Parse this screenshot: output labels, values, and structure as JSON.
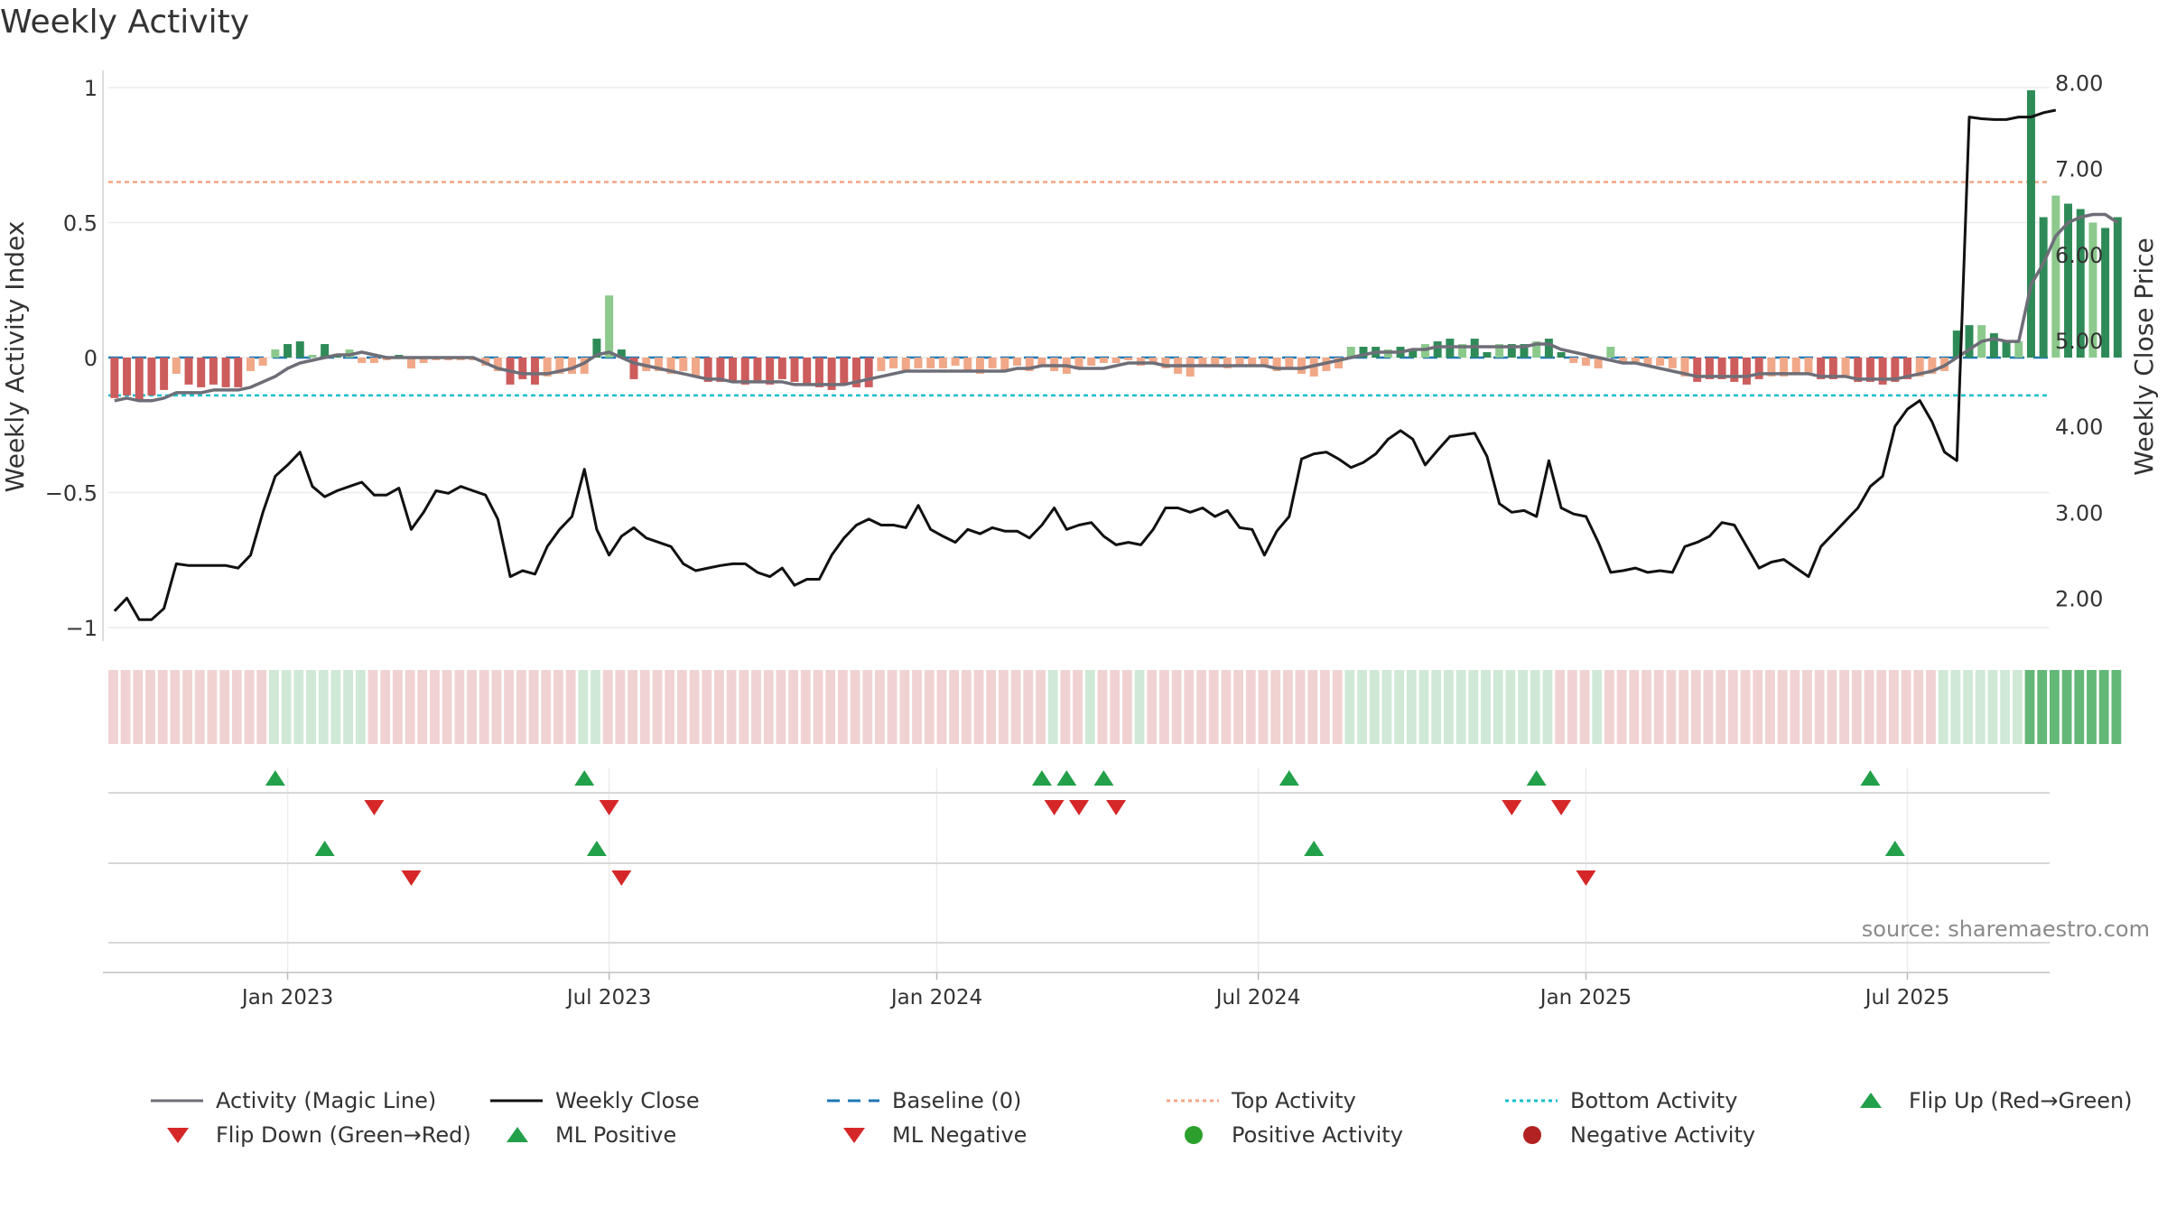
{
  "title": "Weekly Activity",
  "source_label": "source: sharemaestro.com",
  "colors": {
    "magic_line": "#6e6e78",
    "close_line": "#111111",
    "baseline": "#1f77b4",
    "top_activity": "#f4a582",
    "bottom_activity": "#17becf",
    "pos_strong": "#2e8b57",
    "pos_light": "#8cc98c",
    "neg_strong": "#cd5c5c",
    "neg_light": "#f0a888",
    "marker_green": "#22a04a",
    "marker_red": "#d62728",
    "dot_green": "#2ca02c",
    "dot_red": "#b22222",
    "strip_pos": "#cfe9d6",
    "strip_neg": "#f1d2d2",
    "strip_pos_strong": "#63b878"
  },
  "chart_data": {
    "type": "bar+line",
    "title": "Weekly Activity",
    "ylabel_left": "Weekly Activity Index",
    "ylabel_right": "Weekly Close Price",
    "yticks_left": [
      {
        "v": 1,
        "label": "1"
      },
      {
        "v": 0.5,
        "label": "0.5"
      },
      {
        "v": 0,
        "label": "0"
      },
      {
        "v": -0.5,
        "label": "−0.5"
      },
      {
        "v": -1,
        "label": "−1"
      }
    ],
    "yticks_right": [
      {
        "v": 8,
        "label": "8.00"
      },
      {
        "v": 7,
        "label": "7.00"
      },
      {
        "v": 6,
        "label": "6.00"
      },
      {
        "v": 5,
        "label": "5.00"
      },
      {
        "v": 4,
        "label": "4.00"
      },
      {
        "v": 3,
        "label": "3.00"
      },
      {
        "v": 2,
        "label": "2.00"
      }
    ],
    "ylim_left": [
      -1.05,
      1.05
    ],
    "ylim_right": [
      1.5,
      8.1
    ],
    "week_range": [
      0,
      157
    ],
    "xticks": [
      {
        "week": 14.5,
        "label": "Jan 2023"
      },
      {
        "week": 40.5,
        "label": "Jul 2023"
      },
      {
        "week": 67,
        "label": "Jan 2024"
      },
      {
        "week": 93,
        "label": "Jul 2024"
      },
      {
        "week": 119.5,
        "label": "Jan 2025"
      },
      {
        "week": 145.5,
        "label": "Jul 2025"
      }
    ],
    "top_activity": 0.65,
    "bottom_activity": -0.14,
    "baseline": 0,
    "activity_bars": [
      -0.15,
      -0.14,
      -0.16,
      -0.14,
      -0.12,
      -0.06,
      -0.1,
      -0.11,
      -0.1,
      -0.11,
      -0.11,
      -0.05,
      -0.03,
      0.03,
      0.05,
      0.06,
      0.01,
      0.05,
      0.01,
      0.03,
      -0.02,
      -0.02,
      -0.01,
      0.01,
      -0.04,
      -0.02,
      -0.01,
      -0.01,
      -0.01,
      -0.01,
      -0.03,
      -0.05,
      -0.1,
      -0.08,
      -0.1,
      -0.07,
      -0.06,
      -0.06,
      -0.06,
      0.07,
      0.23,
      0.03,
      -0.08,
      -0.05,
      -0.05,
      -0.06,
      -0.05,
      -0.07,
      -0.09,
      -0.09,
      -0.09,
      -0.1,
      -0.09,
      -0.1,
      -0.08,
      -0.09,
      -0.1,
      -0.11,
      -0.12,
      -0.1,
      -0.11,
      -0.11,
      -0.05,
      -0.04,
      -0.05,
      -0.04,
      -0.04,
      -0.04,
      -0.03,
      -0.05,
      -0.06,
      -0.04,
      -0.05,
      -0.03,
      -0.05,
      -0.03,
      -0.05,
      -0.06,
      -0.04,
      -0.03,
      -0.02,
      -0.02,
      -0.01,
      -0.03,
      -0.02,
      -0.04,
      -0.06,
      -0.07,
      -0.03,
      -0.03,
      -0.04,
      -0.03,
      -0.03,
      -0.03,
      -0.05,
      -0.04,
      -0.06,
      -0.07,
      -0.05,
      -0.04,
      0.04,
      0.04,
      0.04,
      0.03,
      0.04,
      0.03,
      0.05,
      0.06,
      0.07,
      0.05,
      0.07,
      0.02,
      0.05,
      0.05,
      0.05,
      0.06,
      0.07,
      0.02,
      -0.02,
      -0.03,
      -0.04,
      0.04,
      -0.02,
      -0.02,
      -0.03,
      -0.03,
      -0.04,
      -0.07,
      -0.09,
      -0.08,
      -0.08,
      -0.09,
      -0.1,
      -0.08,
      -0.07,
      -0.07,
      -0.06,
      -0.06,
      -0.08,
      -0.08,
      -0.07,
      -0.09,
      -0.09,
      -0.1,
      -0.09,
      -0.08,
      -0.07,
      -0.06,
      -0.05,
      0.1,
      0.12,
      0.12,
      0.09,
      0.06,
      0.06,
      0.99,
      0.52,
      0.6,
      0.57,
      0.55,
      0.5,
      0.48,
      0.52
    ],
    "magic_line": [
      -0.16,
      -0.15,
      -0.16,
      -0.16,
      -0.15,
      -0.13,
      -0.13,
      -0.13,
      -0.12,
      -0.12,
      -0.12,
      -0.11,
      -0.09,
      -0.07,
      -0.04,
      -0.02,
      -0.01,
      0.0,
      0.01,
      0.01,
      0.02,
      0.01,
      0.0,
      0.0,
      0.0,
      0.0,
      0.0,
      0.0,
      0.0,
      0.0,
      -0.02,
      -0.04,
      -0.05,
      -0.06,
      -0.06,
      -0.06,
      -0.05,
      -0.04,
      -0.02,
      0.01,
      0.02,
      0.0,
      -0.02,
      -0.03,
      -0.04,
      -0.05,
      -0.06,
      -0.07,
      -0.08,
      -0.08,
      -0.09,
      -0.09,
      -0.09,
      -0.09,
      -0.09,
      -0.1,
      -0.1,
      -0.1,
      -0.1,
      -0.1,
      -0.09,
      -0.08,
      -0.07,
      -0.06,
      -0.05,
      -0.05,
      -0.05,
      -0.05,
      -0.05,
      -0.05,
      -0.05,
      -0.05,
      -0.05,
      -0.04,
      -0.04,
      -0.03,
      -0.03,
      -0.03,
      -0.04,
      -0.04,
      -0.04,
      -0.03,
      -0.02,
      -0.02,
      -0.02,
      -0.03,
      -0.03,
      -0.03,
      -0.03,
      -0.03,
      -0.03,
      -0.03,
      -0.03,
      -0.03,
      -0.04,
      -0.04,
      -0.04,
      -0.03,
      -0.02,
      -0.01,
      0.0,
      0.01,
      0.02,
      0.02,
      0.02,
      0.03,
      0.03,
      0.04,
      0.04,
      0.04,
      0.04,
      0.04,
      0.04,
      0.04,
      0.04,
      0.05,
      0.05,
      0.03,
      0.02,
      0.01,
      0.0,
      -0.01,
      -0.02,
      -0.02,
      -0.03,
      -0.04,
      -0.05,
      -0.06,
      -0.07,
      -0.07,
      -0.07,
      -0.07,
      -0.07,
      -0.06,
      -0.06,
      -0.06,
      -0.06,
      -0.06,
      -0.07,
      -0.07,
      -0.07,
      -0.08,
      -0.08,
      -0.08,
      -0.08,
      -0.07,
      -0.06,
      -0.05,
      -0.03,
      0.0,
      0.03,
      0.06,
      0.07,
      0.06,
      0.06,
      0.27,
      0.35,
      0.45,
      0.5,
      0.52,
      0.53,
      0.53,
      0.5
    ],
    "weekly_close": [
      1.85,
      2.0,
      1.75,
      1.75,
      1.88,
      2.4,
      2.38,
      2.38,
      2.38,
      2.38,
      2.35,
      2.5,
      3.0,
      3.42,
      3.55,
      3.7,
      3.3,
      3.18,
      3.25,
      3.3,
      3.35,
      3.2,
      3.2,
      3.28,
      2.8,
      3.0,
      3.25,
      3.22,
      3.3,
      3.25,
      3.2,
      2.92,
      2.25,
      2.32,
      2.28,
      2.6,
      2.8,
      2.95,
      3.5,
      2.8,
      2.5,
      2.72,
      2.82,
      2.7,
      2.65,
      2.6,
      2.4,
      2.32,
      2.35,
      2.38,
      2.4,
      2.4,
      2.3,
      2.25,
      2.35,
      2.15,
      2.22,
      2.22,
      2.5,
      2.7,
      2.85,
      2.92,
      2.85,
      2.85,
      2.82,
      3.08,
      2.8,
      2.72,
      2.65,
      2.8,
      2.75,
      2.82,
      2.78,
      2.78,
      2.7,
      2.85,
      3.05,
      2.8,
      2.85,
      2.88,
      2.72,
      2.62,
      2.65,
      2.62,
      2.8,
      3.05,
      3.05,
      3.0,
      3.05,
      2.95,
      3.02,
      2.82,
      2.8,
      2.5,
      2.78,
      2.95,
      3.62,
      3.68,
      3.7,
      3.62,
      3.52,
      3.58,
      3.68,
      3.85,
      3.95,
      3.85,
      3.55,
      3.72,
      3.88,
      3.9,
      3.92,
      3.65,
      3.1,
      3.0,
      3.02,
      2.95,
      3.6,
      3.05,
      2.98,
      2.95,
      2.65,
      2.3,
      2.32,
      2.35,
      2.3,
      2.32,
      2.3,
      2.6,
      2.65,
      2.72,
      2.88,
      2.85,
      2.6,
      2.35,
      2.42,
      2.45,
      2.35,
      2.25,
      2.6,
      2.75,
      2.9,
      3.05,
      3.3,
      3.42,
      4.0,
      4.2,
      4.3,
      4.05,
      3.7,
      3.6,
      7.6,
      7.58,
      7.57,
      7.57,
      7.6,
      7.6,
      7.65,
      7.68
    ],
    "strip_states": [
      "n",
      "n",
      "n",
      "n",
      "n",
      "n",
      "n",
      "n",
      "n",
      "n",
      "n",
      "n",
      "n",
      "p",
      "p",
      "p",
      "p",
      "p",
      "p",
      "p",
      "p",
      "n",
      "n",
      "n",
      "n",
      "n",
      "n",
      "n",
      "n",
      "n",
      "n",
      "n",
      "n",
      "n",
      "n",
      "n",
      "n",
      "n",
      "p",
      "p",
      "n",
      "n",
      "n",
      "n",
      "n",
      "n",
      "n",
      "n",
      "n",
      "n",
      "n",
      "n",
      "n",
      "n",
      "n",
      "n",
      "n",
      "n",
      "n",
      "n",
      "n",
      "n",
      "n",
      "n",
      "n",
      "n",
      "n",
      "n",
      "n",
      "n",
      "n",
      "n",
      "n",
      "n",
      "n",
      "n",
      "p",
      "n",
      "n",
      "p",
      "n",
      "n",
      "n",
      "p",
      "n",
      "n",
      "n",
      "n",
      "n",
      "n",
      "n",
      "n",
      "n",
      "n",
      "n",
      "n",
      "n",
      "n",
      "n",
      "n",
      "p",
      "p",
      "p",
      "p",
      "p",
      "p",
      "p",
      "p",
      "p",
      "p",
      "p",
      "p",
      "p",
      "p",
      "p",
      "p",
      "p",
      "n",
      "n",
      "n",
      "p",
      "n",
      "n",
      "n",
      "n",
      "n",
      "n",
      "n",
      "n",
      "n",
      "n",
      "n",
      "n",
      "n",
      "n",
      "n",
      "n",
      "n",
      "n",
      "n",
      "n",
      "n",
      "n",
      "n",
      "n",
      "n",
      "n",
      "n",
      "p",
      "p",
      "p",
      "p",
      "p",
      "p",
      "p",
      "P",
      "P",
      "P",
      "P",
      "P",
      "P",
      "P",
      "P"
    ],
    "flip_up_weeks": [
      13.5,
      38.5,
      75.5,
      77.5,
      80.5,
      95.5,
      115.5,
      142.5
    ],
    "flip_down_weeks": [
      21.5,
      40.5,
      76.5,
      78.5,
      81.5,
      113.5,
      117.5
    ],
    "ml_positive_weeks": [
      17.5,
      39.5,
      97.5,
      144.5
    ],
    "ml_negative_weeks": [
      24.5,
      41.5,
      119.5
    ],
    "positive_activity_weeks": [],
    "negative_activity_weeks": []
  },
  "legend": {
    "magic_line": "Activity (Magic Line)",
    "weekly_close": "Weekly Close",
    "baseline": "Baseline (0)",
    "top_activity": "Top Activity",
    "bottom_activity": "Bottom Activity",
    "flip_up": "Flip Up (Red→Green)",
    "flip_down": "Flip Down (Green→Red)",
    "ml_positive": "ML Positive",
    "ml_negative": "ML Negative",
    "positive_activity": "Positive Activity",
    "negative_activity": "Negative Activity"
  }
}
